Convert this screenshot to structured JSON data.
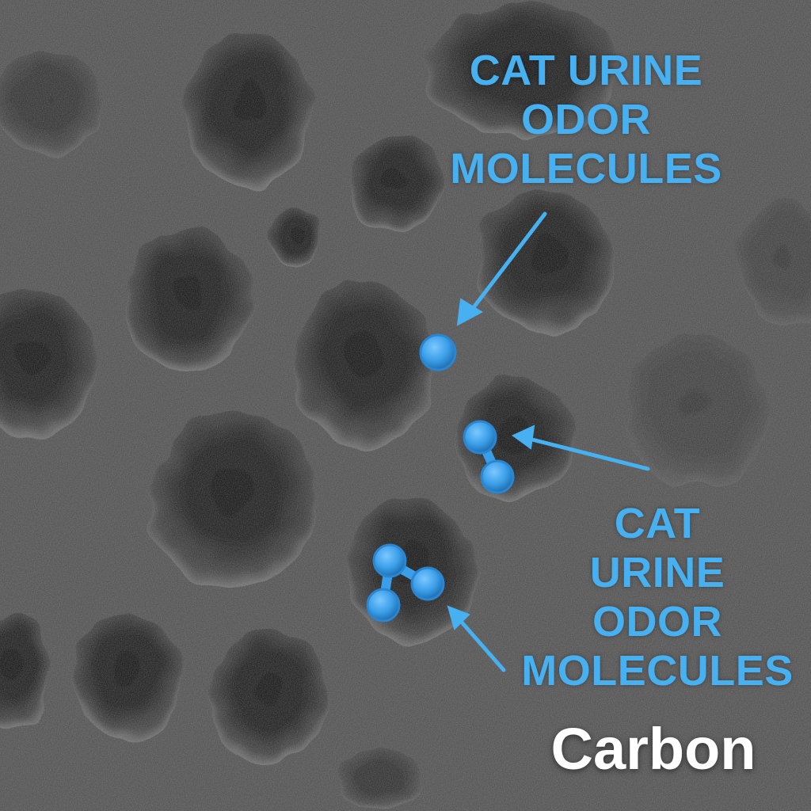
{
  "image": {
    "subject": "porous carbon surface with adsorbed odor molecules",
    "surface_color": "#4a4a4a",
    "pore_color": "#121212",
    "accent_color": "#47b0f0"
  },
  "labels": {
    "top": [
      "CAT URINE",
      "ODOR",
      "MOLECULES"
    ],
    "bottom": [
      "CAT",
      "URINE",
      "ODOR",
      "MOLECULES"
    ],
    "material": "Carbon"
  }
}
